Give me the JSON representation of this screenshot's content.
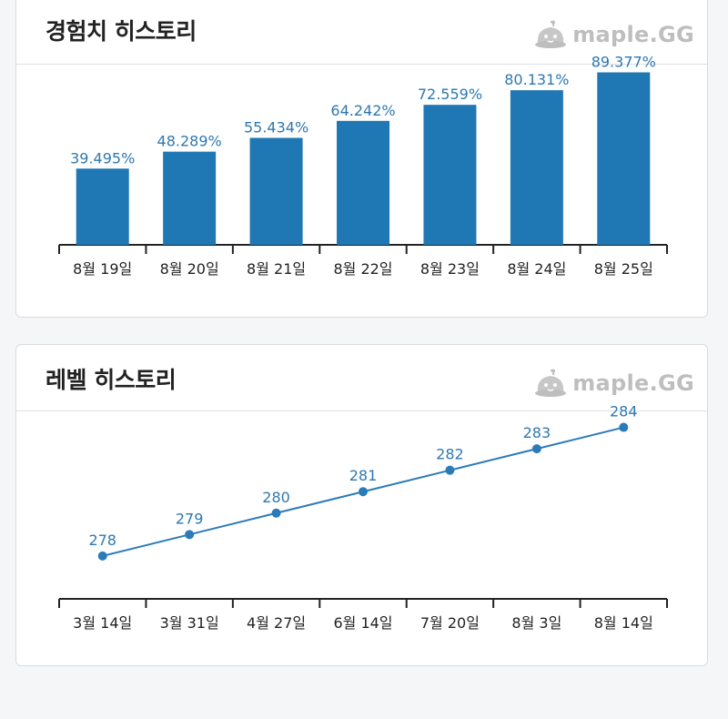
{
  "exp_card": {
    "title": "경험치 히스토리",
    "brand": "maple.GG"
  },
  "level_card": {
    "title": "레벨 히스토리",
    "brand": "maple.GG"
  },
  "colors": {
    "bar": "#1f77b4",
    "line": "#2b7bb9",
    "label": "#2e78b0",
    "axis": "#222222"
  },
  "chart_data": [
    {
      "type": "bar",
      "categories": [
        "8월 19일",
        "8월 20일",
        "8월 21일",
        "8월 22일",
        "8월 23일",
        "8월 24일",
        "8월 25일"
      ],
      "values": [
        39.495,
        48.289,
        55.434,
        64.242,
        72.559,
        80.131,
        89.377
      ],
      "data_labels": [
        "39.495%",
        "48.289%",
        "55.434%",
        "64.242%",
        "72.559%",
        "80.131%",
        "89.377%"
      ],
      "title": "경험치 히스토리",
      "ylim": [
        0,
        100
      ],
      "grid": false
    },
    {
      "type": "line",
      "categories": [
        "3월 14일",
        "3월 31일",
        "4월 27일",
        "6월 14일",
        "7월 20일",
        "8월 3일",
        "8월 14일"
      ],
      "values": [
        278,
        279,
        280,
        281,
        282,
        283,
        284
      ],
      "data_labels": [
        "278",
        "279",
        "280",
        "281",
        "282",
        "283",
        "284"
      ],
      "title": "레벨 히스토리",
      "ylim": [
        276,
        285
      ],
      "grid": false
    }
  ]
}
